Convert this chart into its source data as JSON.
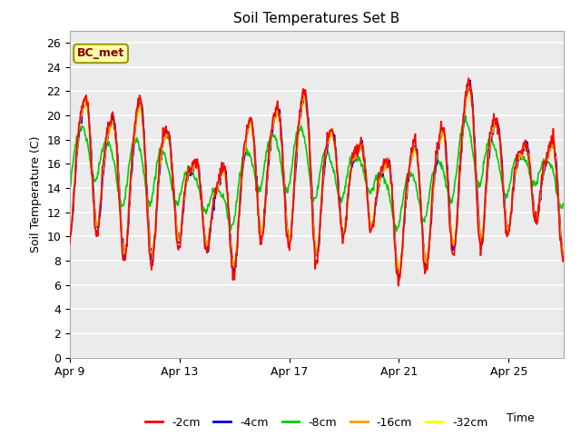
{
  "title": "Soil Temperatures Set B",
  "xlabel": "Time",
  "ylabel": "Soil Temperature (C)",
  "ylim": [
    0,
    27
  ],
  "yticks": [
    0,
    2,
    4,
    6,
    8,
    10,
    12,
    14,
    16,
    18,
    20,
    22,
    24,
    26
  ],
  "annotation_text": "BC_met",
  "annotation_color": "#880000",
  "legend_entries": [
    "-2cm",
    "-4cm",
    "-8cm",
    "-16cm",
    "-32cm"
  ],
  "legend_colors": [
    "#ff0000",
    "#0000cc",
    "#00cc00",
    "#ff9900",
    "#ffff00"
  ],
  "line_width": 1.2,
  "bg_color": "#ebebeb",
  "xtick_labels": [
    "Apr 9",
    "Apr 13",
    "Apr 17",
    "Apr 21",
    "Apr 25"
  ],
  "xtick_days": [
    0,
    4,
    8,
    12,
    16
  ],
  "total_days": 18
}
